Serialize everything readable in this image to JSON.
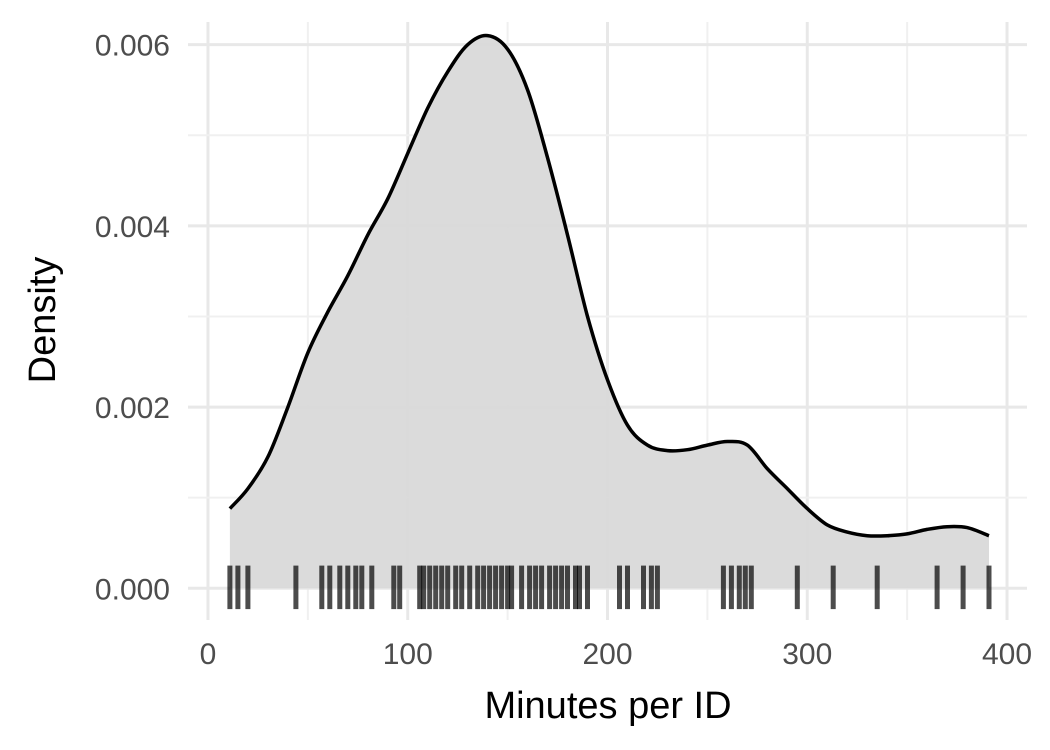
{
  "chart_data": {
    "type": "area",
    "xlabel": "Minutes per ID",
    "ylabel": "Density",
    "xlim": [
      -10,
      410
    ],
    "ylim": [
      -0.00035,
      0.00625
    ],
    "x_ticks": [
      0,
      100,
      200,
      300,
      400
    ],
    "x_tick_labels": [
      "0",
      "100",
      "200",
      "300",
      "400"
    ],
    "y_ticks": [
      0,
      0.002,
      0.004,
      0.006
    ],
    "y_tick_labels": [
      "0.000",
      "0.002",
      "0.004",
      "0.006"
    ],
    "grid": true,
    "legend": "none",
    "density_curve": {
      "x": [
        11,
        20,
        30,
        40,
        50,
        60,
        70,
        80,
        90,
        100,
        110,
        120,
        130,
        140,
        150,
        160,
        170,
        180,
        190,
        200,
        210,
        220,
        230,
        240,
        250,
        260,
        270,
        280,
        290,
        300,
        310,
        320,
        330,
        340,
        350,
        360,
        370,
        380,
        391
      ],
      "y": [
        0.00088,
        0.0011,
        0.00145,
        0.002,
        0.0026,
        0.00305,
        0.00345,
        0.0039,
        0.0043,
        0.0048,
        0.0053,
        0.0057,
        0.006,
        0.0061,
        0.00595,
        0.0055,
        0.00475,
        0.0039,
        0.003,
        0.0023,
        0.0018,
        0.00158,
        0.00152,
        0.00153,
        0.00158,
        0.00162,
        0.00158,
        0.00132,
        0.0011,
        0.00088,
        0.0007,
        0.00062,
        0.00058,
        0.00058,
        0.0006,
        0.00065,
        0.00068,
        0.00067,
        0.00058
      ]
    },
    "rug_values": [
      11,
      15,
      20,
      44,
      57,
      61,
      66,
      70,
      74,
      77,
      82,
      93,
      96,
      106,
      108,
      111,
      114,
      117,
      120,
      124,
      127,
      131,
      135,
      138,
      141,
      144,
      147,
      150,
      152,
      157,
      161,
      164,
      167,
      171,
      174,
      177,
      180,
      184,
      186,
      190,
      206,
      210,
      218,
      222,
      225,
      258,
      262,
      266,
      269,
      272,
      295,
      313,
      335,
      365,
      378,
      391
    ],
    "colors": {
      "fill": "#d9d9d9",
      "line": "#000000",
      "rug": "#000000",
      "grid": "#e8e8e8"
    }
  }
}
